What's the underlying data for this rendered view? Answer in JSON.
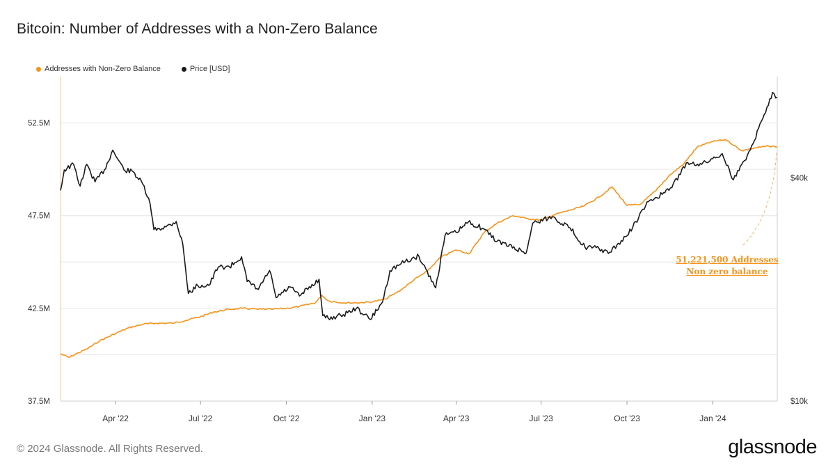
{
  "title": "Bitcoin: Number of Addresses with a Non-Zero Balance",
  "footer": "© 2024 Glassnode. All Rights Reserved.",
  "brand": "glassnode",
  "colors": {
    "addresses": "#f7931a",
    "price": "#1a1a1a",
    "grid": "#e6e6e6",
    "axis": "#cfcfcf"
  },
  "annotation": {
    "line1": "51,221,500 Addresses",
    "line2": "Non zero balance"
  },
  "chart_data": {
    "type": "line",
    "title": "Bitcoin: Number of Addresses with a Non-Zero Balance",
    "legend_position": "top-left",
    "grid": true,
    "x_range": [
      "2022-02-01",
      "2024-03-10"
    ],
    "x_ticks": [
      {
        "date": "2022-04-01",
        "label": "Apr '22"
      },
      {
        "date": "2022-07-01",
        "label": "Jul '22"
      },
      {
        "date": "2022-10-01",
        "label": "Oct '22"
      },
      {
        "date": "2023-01-01",
        "label": "Jan '23"
      },
      {
        "date": "2023-04-01",
        "label": "Apr '23"
      },
      {
        "date": "2023-07-01",
        "label": "Jul '23"
      },
      {
        "date": "2023-10-01",
        "label": "Oct '23"
      },
      {
        "date": "2024-01-01",
        "label": "Jan '24"
      }
    ],
    "y_left": {
      "range": [
        37500000,
        55000000
      ],
      "ticks": [
        37500000,
        42500000,
        47500000,
        52500000
      ],
      "tick_labels": [
        "37.5M",
        "42.5M",
        "47.5M",
        "52.5M"
      ]
    },
    "y_right": {
      "scale": "log",
      "range": [
        10000,
        75000
      ],
      "ticks": [
        10000,
        40000
      ],
      "tick_labels": [
        "$10k",
        "$40k"
      ]
    },
    "series": [
      {
        "name": "Addresses with Non-Zero Balance",
        "axis": "left",
        "color": "#f7931a",
        "points": [
          [
            "2022-02-01",
            40050000
          ],
          [
            "2022-02-10",
            39850000
          ],
          [
            "2022-02-20",
            40100000
          ],
          [
            "2022-03-01",
            40300000
          ],
          [
            "2022-03-15",
            40750000
          ],
          [
            "2022-04-01",
            41150000
          ],
          [
            "2022-04-15",
            41450000
          ],
          [
            "2022-05-01",
            41650000
          ],
          [
            "2022-05-15",
            41700000
          ],
          [
            "2022-06-01",
            41700000
          ],
          [
            "2022-06-15",
            41850000
          ],
          [
            "2022-07-01",
            42050000
          ],
          [
            "2022-07-15",
            42300000
          ],
          [
            "2022-08-01",
            42450000
          ],
          [
            "2022-08-15",
            42500000
          ],
          [
            "2022-09-01",
            42450000
          ],
          [
            "2022-09-15",
            42450000
          ],
          [
            "2022-10-01",
            42500000
          ],
          [
            "2022-10-15",
            42600000
          ],
          [
            "2022-11-01",
            42800000
          ],
          [
            "2022-11-08",
            43200000
          ],
          [
            "2022-11-15",
            42900000
          ],
          [
            "2022-12-01",
            42800000
          ],
          [
            "2022-12-15",
            42800000
          ],
          [
            "2023-01-01",
            42850000
          ],
          [
            "2023-01-15",
            43000000
          ],
          [
            "2023-02-01",
            43500000
          ],
          [
            "2023-02-15",
            44050000
          ],
          [
            "2023-03-01",
            44500000
          ],
          [
            "2023-03-15",
            45250000
          ],
          [
            "2023-04-01",
            45650000
          ],
          [
            "2023-04-15",
            45450000
          ],
          [
            "2023-05-01",
            46600000
          ],
          [
            "2023-05-15",
            47100000
          ],
          [
            "2023-06-01",
            47500000
          ],
          [
            "2023-06-15",
            47350000
          ],
          [
            "2023-07-01",
            47250000
          ],
          [
            "2023-07-15",
            47550000
          ],
          [
            "2023-08-01",
            47800000
          ],
          [
            "2023-08-15",
            48000000
          ],
          [
            "2023-09-01",
            48500000
          ],
          [
            "2023-09-15",
            49050000
          ],
          [
            "2023-10-01",
            48050000
          ],
          [
            "2023-10-15",
            48100000
          ],
          [
            "2023-11-01",
            48850000
          ],
          [
            "2023-11-15",
            49650000
          ],
          [
            "2023-12-01",
            50300000
          ],
          [
            "2023-12-15",
            51200000
          ],
          [
            "2024-01-01",
            51500000
          ],
          [
            "2024-01-15",
            51600000
          ],
          [
            "2024-02-01",
            51000000
          ],
          [
            "2024-02-15",
            51150000
          ],
          [
            "2024-03-01",
            51250000
          ],
          [
            "2024-03-10",
            51221500
          ]
        ]
      },
      {
        "name": "Price [USD]",
        "axis": "right",
        "color": "#1a1a1a",
        "points": [
          [
            "2022-02-01",
            37000
          ],
          [
            "2022-02-05",
            42000
          ],
          [
            "2022-02-15",
            43500
          ],
          [
            "2022-02-22",
            38000
          ],
          [
            "2022-03-01",
            43500
          ],
          [
            "2022-03-10",
            39000
          ],
          [
            "2022-03-20",
            42000
          ],
          [
            "2022-03-29",
            47500
          ],
          [
            "2022-04-10",
            42000
          ],
          [
            "2022-04-20",
            41500
          ],
          [
            "2022-04-30",
            38500
          ],
          [
            "2022-05-08",
            34000
          ],
          [
            "2022-05-12",
            29000
          ],
          [
            "2022-05-25",
            29500
          ],
          [
            "2022-06-05",
            30500
          ],
          [
            "2022-06-12",
            26500
          ],
          [
            "2022-06-18",
            19500
          ],
          [
            "2022-06-28",
            20500
          ],
          [
            "2022-07-10",
            20500
          ],
          [
            "2022-07-20",
            23000
          ],
          [
            "2022-08-01",
            23000
          ],
          [
            "2022-08-14",
            24500
          ],
          [
            "2022-08-20",
            21000
          ],
          [
            "2022-09-01",
            20000
          ],
          [
            "2022-09-13",
            22500
          ],
          [
            "2022-09-20",
            19000
          ],
          [
            "2022-10-05",
            20300
          ],
          [
            "2022-10-15",
            19200
          ],
          [
            "2022-11-05",
            21300
          ],
          [
            "2022-11-09",
            17000
          ],
          [
            "2022-11-15",
            16700
          ],
          [
            "2022-12-01",
            17100
          ],
          [
            "2022-12-15",
            17800
          ],
          [
            "2022-12-30",
            16600
          ],
          [
            "2023-01-12",
            18500
          ],
          [
            "2023-01-20",
            22500
          ],
          [
            "2023-02-01",
            23500
          ],
          [
            "2023-02-20",
            24600
          ],
          [
            "2023-03-10",
            20200
          ],
          [
            "2023-03-20",
            28000
          ],
          [
            "2023-04-01",
            28500
          ],
          [
            "2023-04-14",
            30400
          ],
          [
            "2023-04-30",
            29200
          ],
          [
            "2023-05-15",
            27000
          ],
          [
            "2023-06-15",
            25100
          ],
          [
            "2023-06-22",
            30200
          ],
          [
            "2023-07-13",
            31400
          ],
          [
            "2023-08-01",
            29300
          ],
          [
            "2023-08-17",
            26000
          ],
          [
            "2023-09-01",
            25800
          ],
          [
            "2023-09-11",
            25000
          ],
          [
            "2023-10-01",
            27900
          ],
          [
            "2023-10-24",
            34500
          ],
          [
            "2023-11-15",
            37000
          ],
          [
            "2023-12-05",
            44000
          ],
          [
            "2023-12-20",
            43500
          ],
          [
            "2024-01-11",
            46500
          ],
          [
            "2024-01-23",
            39500
          ],
          [
            "2024-02-10",
            47500
          ],
          [
            "2024-02-28",
            62000
          ],
          [
            "2024-03-05",
            68000
          ],
          [
            "2024-03-10",
            66000
          ]
        ]
      }
    ],
    "annotations": [
      "51,221,500 Addresses",
      "Non zero balance"
    ]
  }
}
